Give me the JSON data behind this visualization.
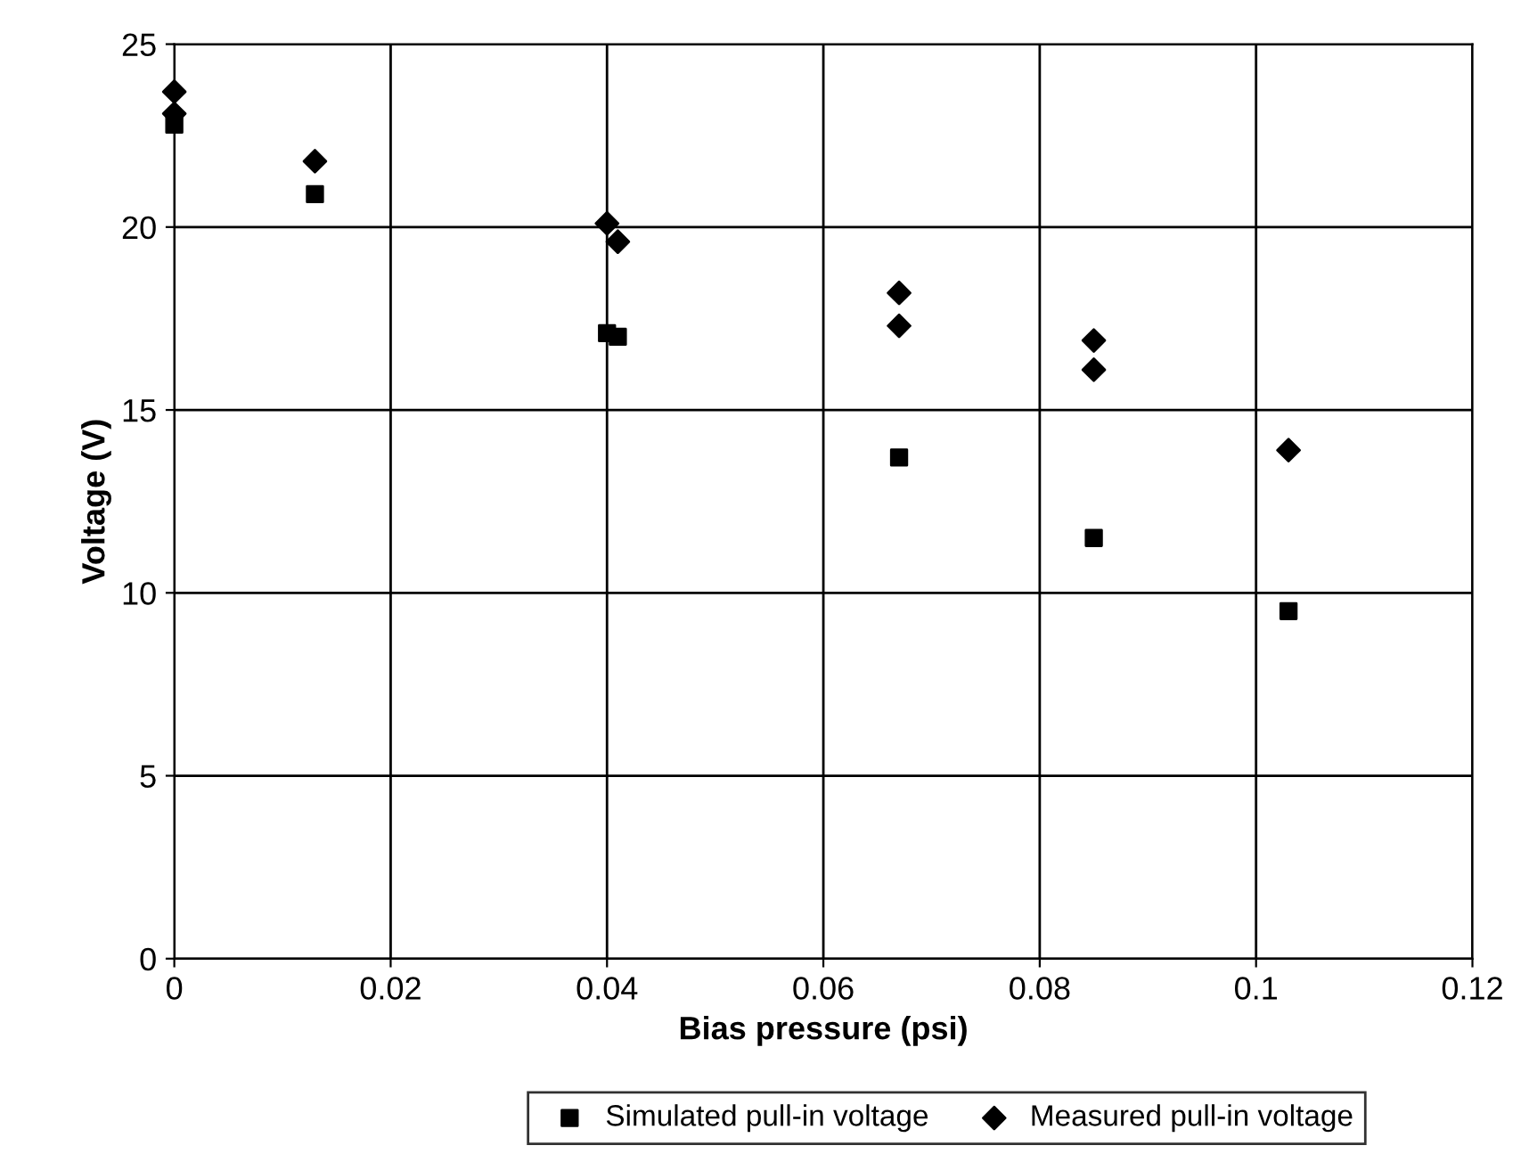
{
  "chart_data": {
    "type": "scatter",
    "xlabel": "Bias pressure (psi)",
    "ylabel": "Voltage (V)",
    "series": [
      {
        "name": "Simulated pull-in voltage",
        "color": "#000000",
        "marker": "square",
        "x": [
          0,
          0.013,
          0.04,
          0.041,
          0.067,
          0.085,
          0.103
        ],
        "values": [
          22.8,
          20.9,
          17.1,
          17.0,
          13.7,
          11.5,
          9.5
        ]
      },
      {
        "name": "Measured pull-in voltage",
        "color": "#000000",
        "marker": "diamond",
        "x": [
          0,
          0,
          0.013,
          0.04,
          0.041,
          0.067,
          0.067,
          0.085,
          0.085,
          0.103
        ],
        "values": [
          23.7,
          23.1,
          21.8,
          20.1,
          19.6,
          18.2,
          17.3,
          16.9,
          16.1,
          13.9
        ]
      }
    ],
    "xlim": [
      0,
      0.12
    ],
    "xticks": [
      0,
      0.02,
      0.04,
      0.06,
      0.08,
      0.1,
      0.12
    ],
    "ylim": [
      0,
      25
    ],
    "yticks": [
      0,
      5,
      10,
      15,
      20,
      25
    ],
    "grid": true,
    "legend": "bottom"
  }
}
